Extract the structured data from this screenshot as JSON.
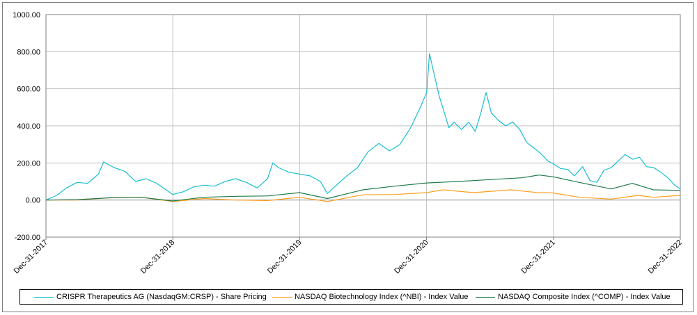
{
  "chart_data": {
    "type": "line",
    "title": "",
    "xlabel": "",
    "ylabel": "",
    "ylim": [
      -200,
      1000
    ],
    "yticks": [
      "1000.00",
      "800.00",
      "600.00",
      "400.00",
      "200.00",
      "0.00",
      "-200.00"
    ],
    "x_start": "2017-12-31",
    "x_end": "2022-12-31",
    "xticks": [
      "Dec-31-2017",
      "Dec-31-2018",
      "Dec-31-2019",
      "Dec-31-2020",
      "Dec-31-2021",
      "Dec-31-2022"
    ],
    "grid": true,
    "legend_position": "bottom",
    "series": [
      {
        "name": "CRISPR Therapeutics AG (NasdaqGM:CRSP) - Share Pricing",
        "color": "#17becf",
        "points": [
          [
            "2017-12-31",
            0
          ],
          [
            "2018-01-31",
            25
          ],
          [
            "2018-02-28",
            65
          ],
          [
            "2018-03-31",
            95
          ],
          [
            "2018-04-30",
            90
          ],
          [
            "2018-05-31",
            140
          ],
          [
            "2018-06-15",
            205
          ],
          [
            "2018-07-15",
            175
          ],
          [
            "2018-08-15",
            155
          ],
          [
            "2018-09-15",
            100
          ],
          [
            "2018-10-15",
            115
          ],
          [
            "2018-11-15",
            90
          ],
          [
            "2018-12-31",
            30
          ],
          [
            "2019-01-31",
            45
          ],
          [
            "2019-02-28",
            70
          ],
          [
            "2019-03-31",
            80
          ],
          [
            "2019-04-30",
            75
          ],
          [
            "2019-05-31",
            100
          ],
          [
            "2019-06-30",
            115
          ],
          [
            "2019-07-31",
            95
          ],
          [
            "2019-08-31",
            65
          ],
          [
            "2019-09-30",
            115
          ],
          [
            "2019-10-15",
            200
          ],
          [
            "2019-10-31",
            175
          ],
          [
            "2019-11-30",
            150
          ],
          [
            "2019-12-31",
            140
          ],
          [
            "2020-01-31",
            130
          ],
          [
            "2020-02-29",
            100
          ],
          [
            "2020-03-20",
            35
          ],
          [
            "2020-04-15",
            80
          ],
          [
            "2020-05-15",
            130
          ],
          [
            "2020-06-15",
            175
          ],
          [
            "2020-07-15",
            260
          ],
          [
            "2020-08-15",
            305
          ],
          [
            "2020-09-15",
            265
          ],
          [
            "2020-10-15",
            300
          ],
          [
            "2020-11-15",
            390
          ],
          [
            "2020-12-15",
            510
          ],
          [
            "2020-12-31",
            580
          ],
          [
            "2021-01-08",
            790
          ],
          [
            "2021-01-20",
            690
          ],
          [
            "2021-02-05",
            560
          ],
          [
            "2021-02-20",
            470
          ],
          [
            "2021-03-05",
            390
          ],
          [
            "2021-03-20",
            420
          ],
          [
            "2021-04-10",
            380
          ],
          [
            "2021-05-01",
            420
          ],
          [
            "2021-05-20",
            370
          ],
          [
            "2021-06-05",
            470
          ],
          [
            "2021-06-20",
            580
          ],
          [
            "2021-07-05",
            470
          ],
          [
            "2021-07-25",
            430
          ],
          [
            "2021-08-15",
            400
          ],
          [
            "2021-09-05",
            420
          ],
          [
            "2021-09-25",
            380
          ],
          [
            "2021-10-15",
            310
          ],
          [
            "2021-11-05",
            280
          ],
          [
            "2021-11-25",
            250
          ],
          [
            "2021-12-15",
            210
          ],
          [
            "2021-12-31",
            195
          ],
          [
            "2022-01-20",
            170
          ],
          [
            "2022-02-10",
            165
          ],
          [
            "2022-03-01",
            130
          ],
          [
            "2022-03-25",
            180
          ],
          [
            "2022-04-15",
            105
          ],
          [
            "2022-05-05",
            95
          ],
          [
            "2022-05-25",
            160
          ],
          [
            "2022-06-15",
            175
          ],
          [
            "2022-07-05",
            210
          ],
          [
            "2022-07-25",
            245
          ],
          [
            "2022-08-15",
            220
          ],
          [
            "2022-09-05",
            230
          ],
          [
            "2022-09-25",
            180
          ],
          [
            "2022-10-15",
            175
          ],
          [
            "2022-11-05",
            150
          ],
          [
            "2022-11-25",
            120
          ],
          [
            "2022-12-15",
            80
          ],
          [
            "2022-12-31",
            60
          ]
        ]
      },
      {
        "name": "NASDAQ Biotechnology Index (^NBI) - Index Value",
        "color": "#ff9f1a",
        "points": [
          [
            "2017-12-31",
            0
          ],
          [
            "2018-03-31",
            0
          ],
          [
            "2018-06-30",
            12
          ],
          [
            "2018-09-30",
            15
          ],
          [
            "2018-12-31",
            -8
          ],
          [
            "2019-03-31",
            8
          ],
          [
            "2019-06-30",
            0
          ],
          [
            "2019-09-30",
            -3
          ],
          [
            "2019-12-31",
            15
          ],
          [
            "2020-03-20",
            -8
          ],
          [
            "2020-06-30",
            28
          ],
          [
            "2020-09-30",
            30
          ],
          [
            "2020-12-31",
            40
          ],
          [
            "2021-02-15",
            55
          ],
          [
            "2021-05-15",
            40
          ],
          [
            "2021-08-31",
            55
          ],
          [
            "2021-11-15",
            40
          ],
          [
            "2021-12-31",
            38
          ],
          [
            "2022-03-15",
            15
          ],
          [
            "2022-06-15",
            5
          ],
          [
            "2022-08-31",
            25
          ],
          [
            "2022-10-15",
            15
          ],
          [
            "2022-12-31",
            25
          ]
        ]
      },
      {
        "name": "NASDAQ Composite Index (^COMP) - Index Value",
        "color": "#1f7a4d",
        "points": [
          [
            "2017-12-31",
            0
          ],
          [
            "2018-03-31",
            2
          ],
          [
            "2018-06-30",
            12
          ],
          [
            "2018-09-30",
            15
          ],
          [
            "2018-12-31",
            -5
          ],
          [
            "2019-03-31",
            15
          ],
          [
            "2019-06-30",
            20
          ],
          [
            "2019-09-30",
            22
          ],
          [
            "2019-12-31",
            40
          ],
          [
            "2020-03-20",
            8
          ],
          [
            "2020-06-30",
            55
          ],
          [
            "2020-09-30",
            75
          ],
          [
            "2020-12-31",
            92
          ],
          [
            "2021-03-31",
            100
          ],
          [
            "2021-06-30",
            110
          ],
          [
            "2021-09-30",
            120
          ],
          [
            "2021-11-20",
            135
          ],
          [
            "2021-12-31",
            125
          ],
          [
            "2022-03-15",
            95
          ],
          [
            "2022-06-15",
            60
          ],
          [
            "2022-08-15",
            90
          ],
          [
            "2022-10-15",
            55
          ],
          [
            "2022-12-31",
            52
          ]
        ]
      }
    ]
  }
}
